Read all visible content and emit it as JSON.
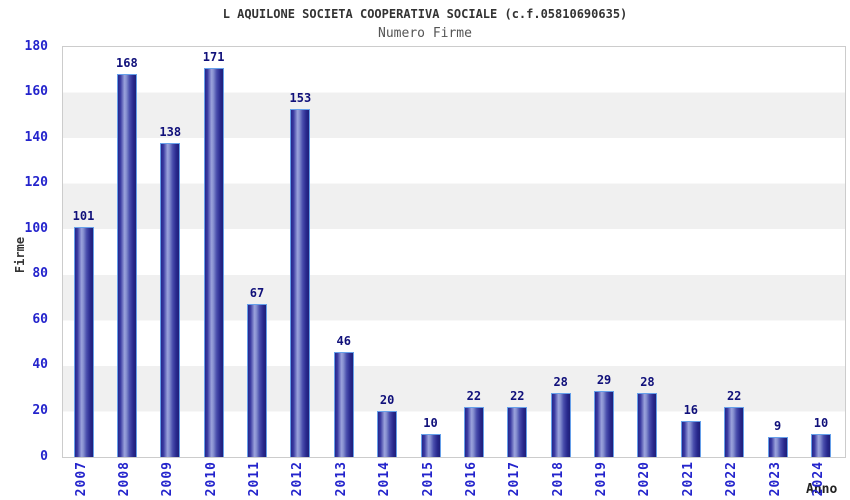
{
  "header": {
    "title": "L AQUILONE SOCIETA COOPERATIVA SOCIALE (c.f.05810690635)",
    "subtitle": "Numero Firme"
  },
  "chart_data": {
    "type": "bar",
    "title": "L AQUILONE SOCIETA COOPERATIVA SOCIALE (c.f.05810690635)",
    "subtitle": "Numero Firme",
    "categories": [
      "2007",
      "2008",
      "2009",
      "2010",
      "2011",
      "2012",
      "2013",
      "2014",
      "2015",
      "2016",
      "2017",
      "2018",
      "2019",
      "2020",
      "2021",
      "2022",
      "2023",
      "2024"
    ],
    "values": [
      101,
      168,
      138,
      171,
      67,
      153,
      46,
      20,
      10,
      22,
      22,
      28,
      29,
      28,
      16,
      22,
      9,
      10
    ],
    "xlabel": "Anno",
    "ylabel": "Firme",
    "ylim": [
      0,
      180
    ],
    "ytick_step": 20,
    "yticks": [
      0,
      20,
      40,
      60,
      80,
      100,
      120,
      140,
      160,
      180
    ],
    "grid": "striped-horizontal-bands",
    "legend": "none",
    "value_labels": true
  },
  "colors": {
    "tick_label_blue": "#2424cc",
    "value_label_navy": "#10107a",
    "bar_dark": "#26268c",
    "bar_highlight": "#9ba3dc",
    "bar_border": "#66a0ea",
    "band_gray": "#f0f0f0",
    "band_white": "#ffffff",
    "plot_border": "#cccccc",
    "title_color": "#333333",
    "subtitle_color": "#555555"
  }
}
